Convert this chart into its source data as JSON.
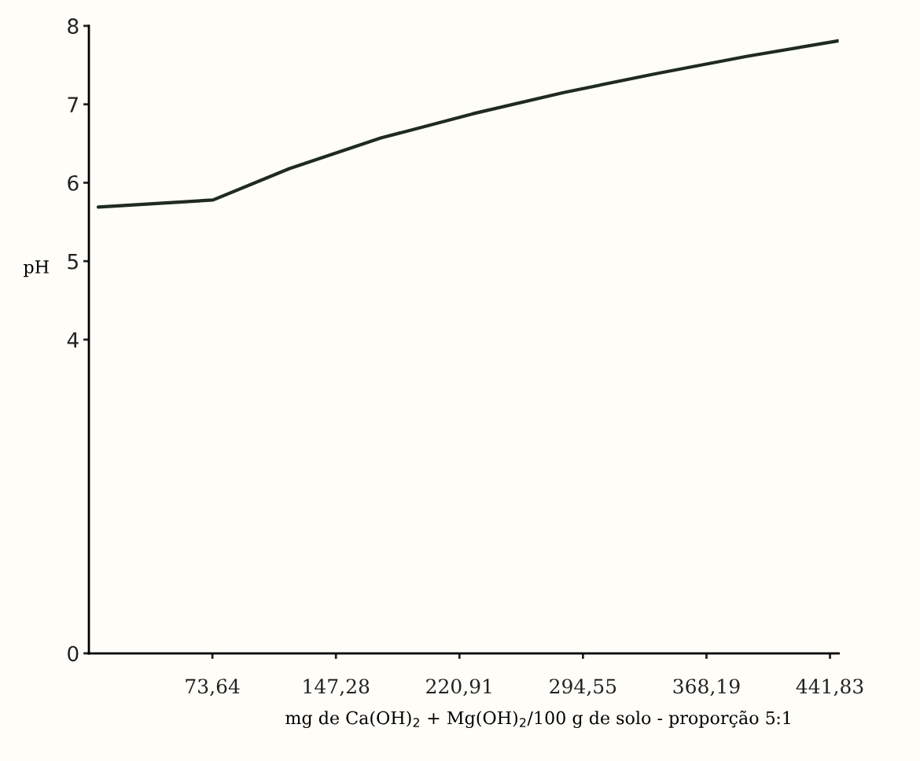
{
  "chart_data": {
    "type": "line",
    "xlabel": "mg de Ca(OH)$_{2}$ + Mg(OH)$_{2}$/100 g de solo - proporção 5:1",
    "ylabel": "pH",
    "x": [
      5.6,
      74,
      119.5,
      174,
      229,
      283,
      338,
      392,
      447
    ],
    "series": [
      {
        "color": "#1f2a22",
        "values": [
          5.69,
          5.78,
          6.18,
          6.57,
          6.88,
          7.15,
          7.39,
          7.61,
          7.81
        ]
      }
    ],
    "xlim": [
      0,
      447
    ],
    "xticks": [
      {
        "value": 73.64,
        "label": "73,64"
      },
      {
        "value": 147.28,
        "label": "147,28"
      },
      {
        "value": 220.91,
        "label": "220,91"
      },
      {
        "value": 294.55,
        "label": "294,55"
      },
      {
        "value": 368.19,
        "label": "368,19"
      },
      {
        "value": 441.83,
        "label": "441,83"
      }
    ],
    "ylim": [
      0,
      8
    ],
    "yticks": [
      0,
      4,
      5,
      6,
      7,
      8
    ],
    "grid": false,
    "marker": "none",
    "line_style": "solid"
  }
}
